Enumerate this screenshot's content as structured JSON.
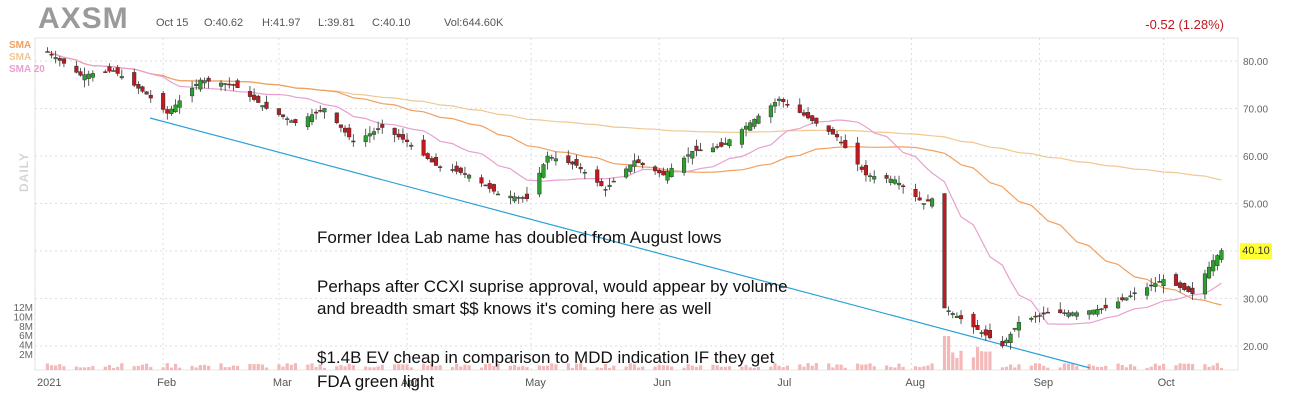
{
  "header": {
    "ticker": "AXSM",
    "date": "Oct 15",
    "open": "O:40.62",
    "high": "H:41.97",
    "low": "L:39.81",
    "close": "C:40.10",
    "volume": "Vol:644.60K",
    "change": "-0.52 (1.28%)"
  },
  "sma_labels": [
    "SMA",
    "SMA",
    "SMA 20"
  ],
  "timeframe": "DAILY",
  "price_tag": "40.10",
  "annotations": [
    "Former Idea Lab name has doubled from August lows",
    "Perhaps after CCXI suprise approval, would appear by volume",
    "and breadth smart $$ knows it's coming here as well",
    "$1.4B EV cheap in comparison to MDD indication IF they get",
    "FDA green light"
  ],
  "colors": {
    "up": "#2ca02c",
    "down": "#c0191f",
    "sma_long": "#f0c890",
    "sma_mid": "#f0a060",
    "sma_short": "#e8a0d0",
    "trendline": "#2ba0d8",
    "volume": "#f4b8b8"
  },
  "chart_data": {
    "type": "candlestick",
    "x_ticks": [
      "2021",
      "Feb",
      "Mar",
      "Apr",
      "May",
      "Jun",
      "Jul",
      "Aug",
      "Sep",
      "Oct"
    ],
    "y_ticks": [
      "80.00",
      "70.00",
      "60.00",
      "50.00",
      "40.00",
      "30.00",
      "20.00"
    ],
    "volume_ticks": [
      "12M",
      "10M",
      "8M",
      "6M",
      "4M",
      "2M"
    ],
    "ylim": [
      16,
      84
    ],
    "close_series": [
      {
        "date": "2021-01-04",
        "close": 82
      },
      {
        "date": "2021-01-12",
        "close": 77
      },
      {
        "date": "2021-01-20",
        "close": 78
      },
      {
        "date": "2021-01-28",
        "close": 73
      },
      {
        "date": "2021-02-02",
        "close": 69
      },
      {
        "date": "2021-02-10",
        "close": 76
      },
      {
        "date": "2021-02-18",
        "close": 75
      },
      {
        "date": "2021-02-26",
        "close": 70
      },
      {
        "date": "2021-03-05",
        "close": 67
      },
      {
        "date": "2021-03-12",
        "close": 70
      },
      {
        "date": "2021-03-19",
        "close": 63
      },
      {
        "date": "2021-03-26",
        "close": 66
      },
      {
        "date": "2021-04-01",
        "close": 63
      },
      {
        "date": "2021-04-08",
        "close": 58
      },
      {
        "date": "2021-04-16",
        "close": 56
      },
      {
        "date": "2021-04-23",
        "close": 52
      },
      {
        "date": "2021-04-30",
        "close": 51
      },
      {
        "date": "2021-05-05",
        "close": 60
      },
      {
        "date": "2021-05-12",
        "close": 58
      },
      {
        "date": "2021-05-19",
        "close": 53
      },
      {
        "date": "2021-05-26",
        "close": 59
      },
      {
        "date": "2021-06-02",
        "close": 56
      },
      {
        "date": "2021-06-09",
        "close": 61
      },
      {
        "date": "2021-06-16",
        "close": 62
      },
      {
        "date": "2021-06-23",
        "close": 67
      },
      {
        "date": "2021-06-30",
        "close": 72
      },
      {
        "date": "2021-07-07",
        "close": 68
      },
      {
        "date": "2021-07-14",
        "close": 64
      },
      {
        "date": "2021-07-21",
        "close": 56
      },
      {
        "date": "2021-07-28",
        "close": 55
      },
      {
        "date": "2021-08-04",
        "close": 50
      },
      {
        "date": "2021-08-06",
        "close": 51
      },
      {
        "date": "2021-08-09",
        "close": 28
      },
      {
        "date": "2021-08-16",
        "close": 24
      },
      {
        "date": "2021-08-23",
        "close": 20
      },
      {
        "date": "2021-08-27",
        "close": 25
      },
      {
        "date": "2021-09-03",
        "close": 27
      },
      {
        "date": "2021-09-10",
        "close": 27
      },
      {
        "date": "2021-09-17",
        "close": 28
      },
      {
        "date": "2021-09-24",
        "close": 31
      },
      {
        "date": "2021-10-01",
        "close": 34
      },
      {
        "date": "2021-10-08",
        "close": 31
      },
      {
        "date": "2021-10-13",
        "close": 38
      },
      {
        "date": "2021-10-15",
        "close": 40.1
      }
    ]
  }
}
